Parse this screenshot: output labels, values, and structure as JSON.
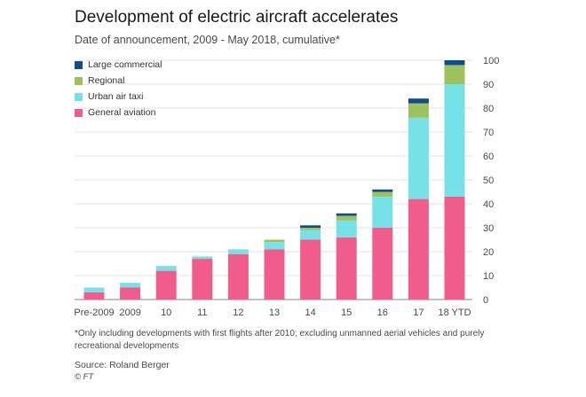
{
  "title": "Development of electric aircraft accelerates",
  "subtitle": "Date of announcement, 2009 - May 2018, cumulative*",
  "footnote": "*Only including developments with first flights after 2010; excluding unmanned aerial vehicles and purely recreational developments",
  "source": "Source: Roland Berger",
  "copyright": "© FT",
  "chart_data": {
    "type": "bar",
    "stacked": true,
    "categories": [
      "Pre-2009",
      "2009",
      "10",
      "11",
      "12",
      "13",
      "14",
      "15",
      "16",
      "17",
      "18 YTD"
    ],
    "series": [
      {
        "name": "General aviation",
        "color": "#f05d8c",
        "values": [
          3,
          5,
          12,
          17,
          19,
          21,
          25,
          26,
          30,
          42,
          43
        ]
      },
      {
        "name": "Urban air taxi",
        "color": "#77e1e8",
        "values": [
          2,
          2,
          2,
          1,
          2,
          3,
          4,
          7,
          13,
          34,
          47
        ]
      },
      {
        "name": "Regional",
        "color": "#9dc15c",
        "values": [
          0,
          0,
          0,
          0,
          0,
          1,
          1,
          2,
          2,
          6,
          8
        ]
      },
      {
        "name": "Large commercial",
        "color": "#0e4c8b",
        "values": [
          0,
          0,
          0,
          0,
          0,
          0,
          1,
          1,
          1,
          2,
          2
        ]
      }
    ],
    "legend_order": [
      "Large commercial",
      "Regional",
      "Urban air taxi",
      "General aviation"
    ],
    "ylim": [
      0,
      100
    ],
    "yticks": [
      0,
      10,
      20,
      30,
      40,
      50,
      60,
      70,
      80,
      90,
      100
    ],
    "y_axis_position": "right",
    "legend_position": "top-left",
    "grid": true
  }
}
